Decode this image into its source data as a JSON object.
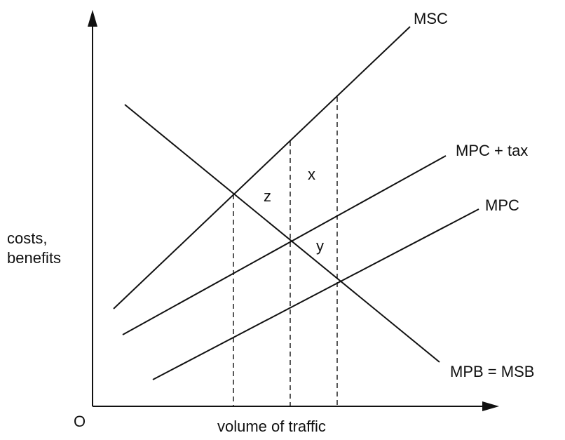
{
  "axes": {
    "y_label_line1": "costs,",
    "y_label_line2": "benefits",
    "x_label": "volume of traffic",
    "origin_label": "O"
  },
  "curves": {
    "msc": "MSC",
    "mpc_tax": "MPC + tax",
    "mpc": "MPC",
    "mpb_msb": "MPB = MSB"
  },
  "areas": {
    "x": "x",
    "y": "y",
    "z": "z"
  },
  "colors": {
    "line": "#111111",
    "background": "#ffffff"
  }
}
